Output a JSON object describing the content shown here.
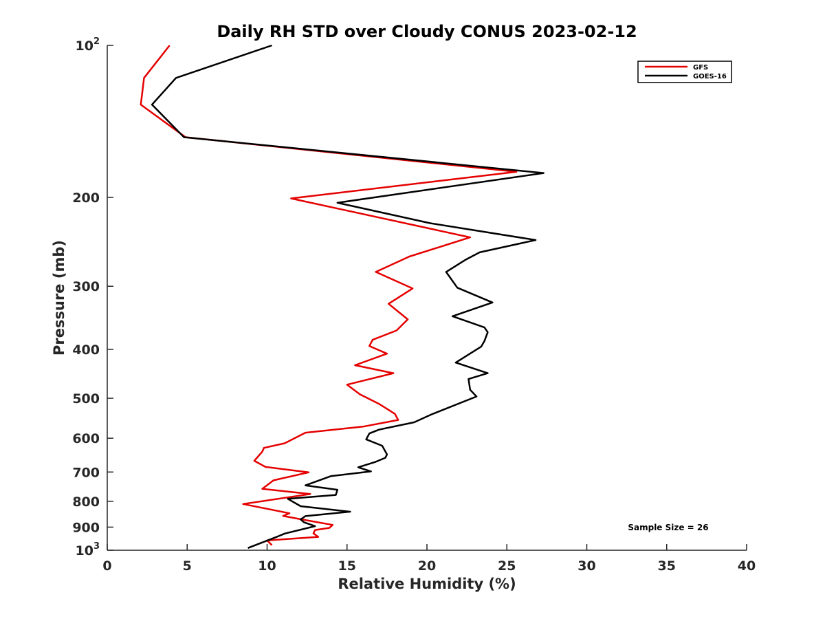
{
  "chart_data": {
    "type": "line",
    "title": "Daily RH STD over Cloudy CONUS 2023-02-12",
    "xlabel": "Relative Humidity (%)",
    "ylabel": "Pressure (mb)",
    "xlim": [
      0,
      40
    ],
    "ylim": [
      100,
      1000
    ],
    "yscale": "log",
    "yreversed": true,
    "grid": false,
    "legend_location": "top-right",
    "xticks": [
      0,
      5,
      10,
      15,
      20,
      25,
      30,
      35,
      40
    ],
    "xtick_labels": [
      "0",
      "5",
      "10",
      "15",
      "20",
      "25",
      "30",
      "35",
      "40"
    ],
    "yticks": [
      100,
      200,
      300,
      400,
      500,
      600,
      700,
      800,
      900,
      1000
    ],
    "ytick_labels": [
      {
        "base": "10",
        "sup": "2"
      },
      {
        "base": "200",
        "sup": ""
      },
      {
        "base": "300",
        "sup": ""
      },
      {
        "base": "400",
        "sup": ""
      },
      {
        "base": "500",
        "sup": ""
      },
      {
        "base": "600",
        "sup": ""
      },
      {
        "base": "700",
        "sup": ""
      },
      {
        "base": "800",
        "sup": ""
      },
      {
        "base": "900",
        "sup": ""
      },
      {
        "base": "10",
        "sup": "3"
      }
    ],
    "annotation": "Sample Size = 26",
    "series": [
      {
        "name": "GFS",
        "color": "#e50000",
        "points": [
          [
            3.9,
            100
          ],
          [
            2.3,
            116
          ],
          [
            2.1,
            131
          ],
          [
            4.9,
            152
          ],
          [
            25.6,
            178
          ],
          [
            11.5,
            201
          ],
          [
            22.7,
            240
          ],
          [
            18.9,
            262
          ],
          [
            16.8,
            281
          ],
          [
            19.1,
            303
          ],
          [
            17.6,
            325
          ],
          [
            18.8,
            349
          ],
          [
            18.1,
            367
          ],
          [
            16.6,
            383
          ],
          [
            16.4,
            394
          ],
          [
            17.5,
            408
          ],
          [
            15.5,
            430
          ],
          [
            17.9,
            446
          ],
          [
            15.0,
            470
          ],
          [
            15.8,
            491
          ],
          [
            17.0,
            513
          ],
          [
            18.0,
            537
          ],
          [
            18.2,
            552
          ],
          [
            16.0,
            569
          ],
          [
            12.4,
            585
          ],
          [
            11.1,
            614
          ],
          [
            9.8,
            627
          ],
          [
            9.7,
            638
          ],
          [
            9.2,
            665
          ],
          [
            9.9,
            684
          ],
          [
            12.6,
            701
          ],
          [
            10.4,
            727
          ],
          [
            9.7,
            756
          ],
          [
            12.7,
            774
          ],
          [
            8.5,
            810
          ],
          [
            11.4,
            845
          ],
          [
            11.0,
            855
          ],
          [
            12.0,
            867
          ],
          [
            14.1,
            891
          ],
          [
            13.9,
            903
          ],
          [
            13.0,
            912
          ],
          [
            12.9,
            926
          ],
          [
            13.2,
            941
          ],
          [
            10.0,
            956
          ],
          [
            10.3,
            977
          ]
        ]
      },
      {
        "name": "GOES-16",
        "color": "#000000",
        "points": [
          [
            10.3,
            100
          ],
          [
            4.3,
            116
          ],
          [
            2.8,
            131
          ],
          [
            4.8,
            152
          ],
          [
            27.3,
            179
          ],
          [
            14.4,
            205
          ],
          [
            20.2,
            225
          ],
          [
            26.8,
            243
          ],
          [
            23.3,
            257
          ],
          [
            22.4,
            266
          ],
          [
            21.2,
            281
          ],
          [
            21.9,
            302
          ],
          [
            24.1,
            323
          ],
          [
            21.6,
            344
          ],
          [
            23.6,
            362
          ],
          [
            23.8,
            370
          ],
          [
            23.6,
            385
          ],
          [
            23.4,
            395
          ],
          [
            21.8,
            425
          ],
          [
            23.8,
            446
          ],
          [
            22.6,
            458
          ],
          [
            22.7,
            481
          ],
          [
            23.1,
            496
          ],
          [
            20.3,
            538
          ],
          [
            19.2,
            558
          ],
          [
            17.0,
            577
          ],
          [
            16.4,
            587
          ],
          [
            16.2,
            603
          ],
          [
            17.2,
            621
          ],
          [
            17.5,
            646
          ],
          [
            17.4,
            656
          ],
          [
            16.8,
            668
          ],
          [
            15.7,
            685
          ],
          [
            16.5,
            698
          ],
          [
            14.0,
            713
          ],
          [
            12.4,
            744
          ],
          [
            14.4,
            759
          ],
          [
            14.3,
            777
          ],
          [
            11.3,
            791
          ],
          [
            12.1,
            818
          ],
          [
            15.2,
            839
          ],
          [
            12.4,
            856
          ],
          [
            12.1,
            869
          ],
          [
            12.3,
            880
          ],
          [
            13.0,
            896
          ],
          [
            11.1,
            927
          ],
          [
            10.6,
            941
          ],
          [
            8.8,
            990
          ]
        ]
      }
    ]
  }
}
